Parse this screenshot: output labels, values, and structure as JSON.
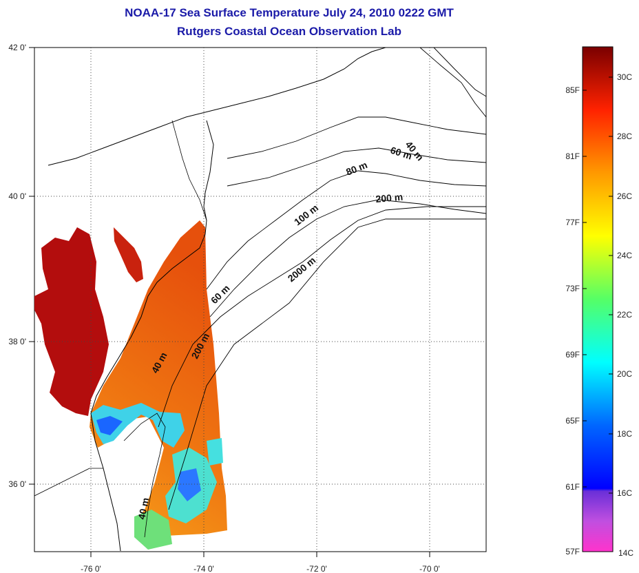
{
  "header": {
    "title": "NOAA-17 Sea Surface Temperature July 24, 2010 0222 GMT",
    "subtitle": "Rutgers Coastal Ocean Observation Lab"
  },
  "axes": {
    "lon_labels": [
      "-76 0'",
      "-74 0'",
      "-72 0'",
      "-70 0'"
    ],
    "lat_labels": [
      "42 0'",
      "40 0'",
      "38 0'",
      "36 0'"
    ]
  },
  "contours": {
    "labels": [
      "40 m",
      "60 m",
      "80 m",
      "200 m",
      "100 m",
      "2000 m",
      "60 m",
      "200 m",
      "40 m",
      "40 m"
    ]
  },
  "colorbar": {
    "fahrenheit": [
      "85F",
      "81F",
      "77F",
      "73F",
      "69F",
      "65F",
      "61F",
      "57F"
    ],
    "celsius": [
      "30C",
      "28C",
      "26C",
      "24C",
      "22C",
      "20C",
      "18C",
      "16C",
      "14C"
    ]
  },
  "colors": {
    "title": "#1a1aa8",
    "land_outline": "#000000",
    "sst_warm": "#e8450a",
    "bay_hot": "#b30d0d"
  }
}
